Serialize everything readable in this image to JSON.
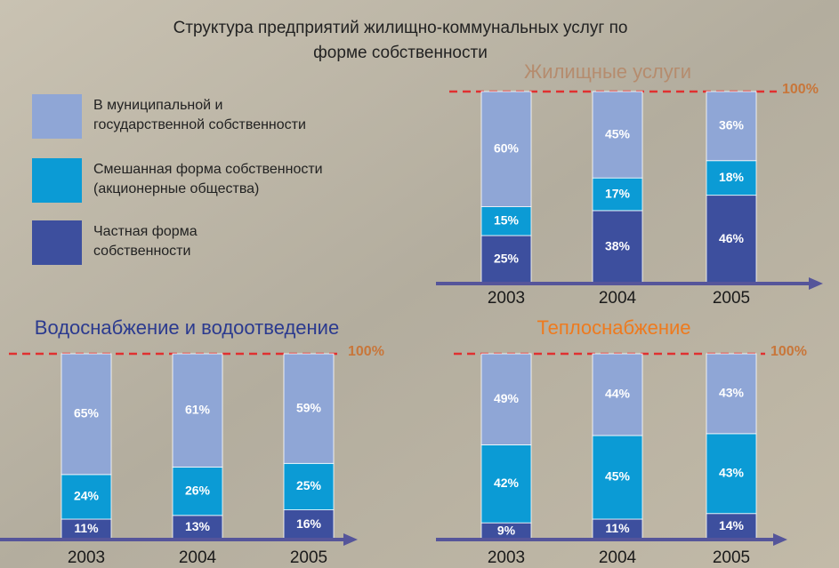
{
  "title": "Структура предприятий жилищно-коммунальных услуг по\nформе собственности",
  "legend": {
    "items": [
      {
        "name": "В муниципальной и\nгосударственной собственности",
        "color": "#8fa6d6"
      },
      {
        "name": "Смешанная форма собственности\n(акционерные общества)",
        "color": "#0b9bd5"
      },
      {
        "name": "Частная форма\nсобственности",
        "color": "#3d4f9e"
      }
    ]
  },
  "chart_data": [
    {
      "type": "stacked_bar",
      "title": "Жилищные услуги",
      "title_color": "#b58c6e",
      "categories": [
        "2003",
        "2004",
        "2005"
      ],
      "ylim": [
        0,
        100
      ],
      "reference_line": {
        "value": 100,
        "label": "100%"
      },
      "series": [
        {
          "values": [
            60,
            45,
            36
          ],
          "value_labels": [
            "60%",
            "45%",
            "36%"
          ]
        },
        {
          "values": [
            15,
            17,
            18
          ],
          "value_labels": [
            "15%",
            "17%",
            "18%"
          ]
        },
        {
          "values": [
            25,
            38,
            46
          ],
          "value_labels": [
            "25%",
            "38%",
            "46%"
          ]
        }
      ]
    },
    {
      "type": "stacked_bar",
      "title": "Водоснабжение и водоотведение",
      "title_color": "#2b3a8f",
      "categories": [
        "2003",
        "2004",
        "2005"
      ],
      "ylim": [
        0,
        100
      ],
      "reference_line": {
        "value": 100,
        "label": "100%"
      },
      "series": [
        {
          "values": [
            65,
            61,
            59
          ],
          "value_labels": [
            "65%",
            "61%",
            "59%"
          ]
        },
        {
          "values": [
            24,
            26,
            25
          ],
          "value_labels": [
            "24%",
            "26%",
            "25%"
          ]
        },
        {
          "values": [
            11,
            13,
            16
          ],
          "value_labels": [
            "11%",
            "13%",
            "16%"
          ]
        }
      ]
    },
    {
      "type": "stacked_bar",
      "title": "Теплоснабжение",
      "title_color": "#ee7a1e",
      "categories": [
        "2003",
        "2004",
        "2005"
      ],
      "ylim": [
        0,
        100
      ],
      "reference_line": {
        "value": 100,
        "label": "100%"
      },
      "series": [
        {
          "values": [
            49,
            44,
            43
          ],
          "value_labels": [
            "49%",
            "44%",
            "43%"
          ]
        },
        {
          "values": [
            42,
            45,
            43
          ],
          "value_labels": [
            "42%",
            "45%",
            "43%"
          ]
        },
        {
          "values": [
            9,
            11,
            14
          ],
          "value_labels": [
            "9%",
            "11%",
            "14%"
          ]
        }
      ]
    }
  ]
}
